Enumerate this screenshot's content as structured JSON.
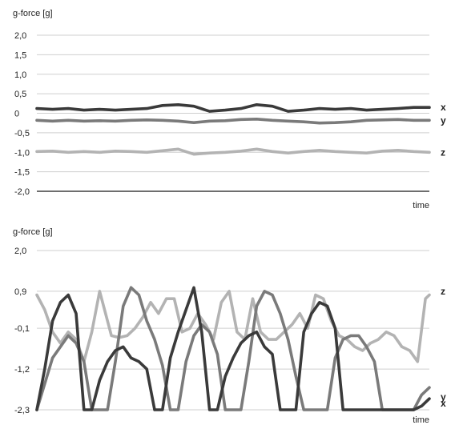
{
  "chart_data": [
    {
      "type": "line",
      "ylabel": "g-force [g]",
      "xlabel": "time",
      "ylim": [
        -2.0,
        2.0
      ],
      "yticks": [
        "2,0",
        "1,5",
        "1,0",
        "0,5",
        "0",
        "-0,5",
        "-1,0",
        "-1,5",
        "-2,0"
      ],
      "ytick_values": [
        2.0,
        1.5,
        1.0,
        0.5,
        0.0,
        -0.5,
        -1.0,
        -1.5,
        -2.0
      ],
      "grid": true,
      "series": [
        {
          "name": "x",
          "color": "#3a3a3a",
          "x": [
            0,
            4,
            8,
            12,
            16,
            20,
            24,
            28,
            32,
            36,
            40,
            44,
            48,
            52,
            56,
            60,
            64,
            68,
            72,
            76,
            80,
            84,
            88,
            92,
            96,
            100
          ],
          "values": [
            0.12,
            0.1,
            0.12,
            0.08,
            0.1,
            0.08,
            0.1,
            0.12,
            0.2,
            0.22,
            0.18,
            0.05,
            0.08,
            0.12,
            0.22,
            0.18,
            0.05,
            0.08,
            0.12,
            0.1,
            0.12,
            0.08,
            0.1,
            0.12,
            0.15,
            0.15
          ]
        },
        {
          "name": "y",
          "color": "#7a7a7a",
          "x": [
            0,
            4,
            8,
            12,
            16,
            20,
            24,
            28,
            32,
            36,
            40,
            44,
            48,
            52,
            56,
            60,
            64,
            68,
            72,
            76,
            80,
            84,
            88,
            92,
            96,
            100
          ],
          "values": [
            -0.18,
            -0.2,
            -0.18,
            -0.2,
            -0.19,
            -0.2,
            -0.18,
            -0.17,
            -0.18,
            -0.2,
            -0.24,
            -0.2,
            -0.19,
            -0.16,
            -0.15,
            -0.18,
            -0.2,
            -0.22,
            -0.25,
            -0.24,
            -0.22,
            -0.18,
            -0.17,
            -0.16,
            -0.18,
            -0.18
          ]
        },
        {
          "name": "z",
          "color": "#b3b3b3",
          "x": [
            0,
            4,
            8,
            12,
            16,
            20,
            24,
            28,
            32,
            36,
            40,
            44,
            48,
            52,
            56,
            60,
            64,
            68,
            72,
            76,
            80,
            84,
            88,
            92,
            96,
            100
          ],
          "values": [
            -0.98,
            -0.97,
            -1.0,
            -0.98,
            -1.0,
            -0.97,
            -0.98,
            -1.0,
            -0.96,
            -0.92,
            -1.05,
            -1.02,
            -1.0,
            -0.97,
            -0.92,
            -0.98,
            -1.02,
            -0.98,
            -0.95,
            -0.98,
            -1.0,
            -1.02,
            -0.97,
            -0.95,
            -0.98,
            -1.0
          ]
        }
      ]
    },
    {
      "type": "line",
      "ylabel": "g-force [g]",
      "xlabel": "time",
      "ylim": [
        -2.3,
        2.0
      ],
      "yticks": [
        "2,0",
        "0,9",
        "-0,1",
        "-1,2",
        "-2,3"
      ],
      "ytick_values": [
        2.0,
        0.9,
        -0.1,
        -1.2,
        -2.3
      ],
      "grid": true,
      "series": [
        {
          "name": "z",
          "color": "#b3b3b3",
          "x": [
            0,
            2,
            4,
            6,
            8,
            10,
            12,
            14,
            16,
            18,
            19,
            21,
            23,
            25,
            27,
            29,
            31,
            33,
            35,
            37,
            39,
            41,
            43,
            45,
            47,
            49,
            51,
            53,
            55,
            57,
            59,
            61,
            63,
            65,
            67,
            69,
            71,
            73,
            75,
            77,
            79,
            81,
            83,
            85,
            87,
            89,
            91,
            93,
            95,
            97,
            99,
            100
          ],
          "values": [
            0.8,
            0.4,
            -0.2,
            -0.5,
            -0.2,
            -0.4,
            -1.0,
            -0.2,
            0.9,
            0.1,
            -0.3,
            -0.35,
            -0.3,
            -0.1,
            0.2,
            0.6,
            0.3,
            0.7,
            0.7,
            -0.2,
            -0.1,
            0.3,
            0.0,
            -0.4,
            0.6,
            0.9,
            -0.2,
            -0.4,
            0.7,
            -0.2,
            -0.4,
            -0.4,
            -0.2,
            0.0,
            0.3,
            -0.1,
            0.8,
            0.7,
            0.1,
            -0.3,
            -0.4,
            -0.6,
            -0.7,
            -0.5,
            -0.4,
            -0.2,
            -0.3,
            -0.6,
            -0.7,
            -1.0,
            0.7,
            0.8
          ]
        },
        {
          "name": "y",
          "color": "#7a7a7a",
          "x": [
            0,
            2,
            4,
            6,
            8,
            10,
            12,
            14,
            16,
            18,
            20,
            22,
            24,
            26,
            28,
            30,
            32,
            34,
            36,
            38,
            40,
            42,
            44,
            46,
            48,
            50,
            52,
            54,
            56,
            58,
            60,
            62,
            64,
            66,
            68,
            70,
            72,
            74,
            76,
            78,
            80,
            82,
            84,
            86,
            88,
            90,
            92,
            94,
            96,
            98,
            100
          ],
          "values": [
            -2.3,
            -1.6,
            -0.9,
            -0.6,
            -0.3,
            -0.5,
            -1.0,
            -2.3,
            -2.3,
            -2.3,
            -1.0,
            0.5,
            1.0,
            0.8,
            0.1,
            -0.4,
            -1.1,
            -2.3,
            -2.3,
            -1.0,
            -0.3,
            0.0,
            -0.2,
            -0.8,
            -2.3,
            -2.3,
            -2.3,
            -1.0,
            0.5,
            0.9,
            0.8,
            0.3,
            -0.4,
            -1.4,
            -2.3,
            -2.3,
            -2.3,
            -2.3,
            -0.9,
            -0.4,
            -0.3,
            -0.3,
            -0.6,
            -1.0,
            -2.3,
            -2.3,
            -2.3,
            -2.3,
            -2.3,
            -1.9,
            -1.7
          ]
        },
        {
          "name": "x",
          "color": "#3a3a3a",
          "x": [
            0,
            2,
            4,
            6,
            8,
            10,
            12,
            14,
            16,
            18,
            20,
            22,
            24,
            26,
            28,
            30,
            32,
            34,
            36,
            38,
            40,
            42,
            44,
            46,
            48,
            50,
            52,
            54,
            56,
            58,
            60,
            62,
            64,
            66,
            68,
            70,
            72,
            74,
            76,
            78,
            80,
            82,
            84,
            86,
            88,
            90,
            92,
            94,
            96,
            98,
            100
          ],
          "values": [
            -2.3,
            -1.2,
            0.1,
            0.6,
            0.8,
            0.3,
            -2.3,
            -2.3,
            -1.5,
            -1.0,
            -0.7,
            -0.6,
            -0.9,
            -1.0,
            -1.2,
            -2.3,
            -2.3,
            -0.9,
            -0.2,
            0.4,
            1.0,
            -0.2,
            -2.3,
            -2.3,
            -1.4,
            -0.9,
            -0.5,
            -0.3,
            -0.2,
            -0.6,
            -0.8,
            -2.3,
            -2.3,
            -2.3,
            -0.2,
            0.3,
            0.6,
            0.5,
            -0.1,
            -2.3,
            -2.3,
            -2.3,
            -2.3,
            -2.3,
            -2.3,
            -2.3,
            -2.3,
            -2.3,
            -2.3,
            -2.2,
            -2.0
          ]
        }
      ]
    }
  ]
}
